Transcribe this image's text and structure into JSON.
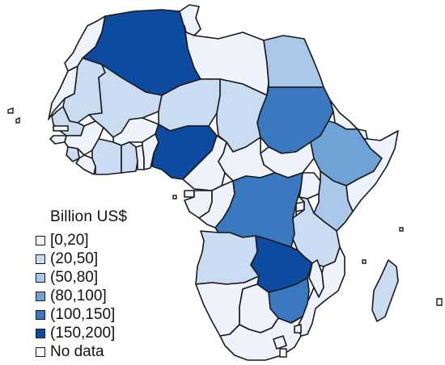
{
  "legend": {
    "title": "Billion US$",
    "items": [
      {
        "label": "[0,20]",
        "color": "#eef3fb"
      },
      {
        "label": "(20,50]",
        "color": "#cadcf1"
      },
      {
        "label": "(50,80]",
        "color": "#a9c8ea"
      },
      {
        "label": "(80,100]",
        "color": "#6fa3d8"
      },
      {
        "label": "(100,150]",
        "color": "#3a78c0"
      },
      {
        "label": "(150,200]",
        "color": "#0d4ba1"
      },
      {
        "label": "No data",
        "color": "#ffffff"
      }
    ]
  },
  "regions": [
    {
      "name": "morocco",
      "class": 0
    },
    {
      "name": "western-sahara",
      "class": 0
    },
    {
      "name": "algeria",
      "class": 5
    },
    {
      "name": "tunisia",
      "class": 0
    },
    {
      "name": "libya",
      "class": 0
    },
    {
      "name": "egypt",
      "class": 2
    },
    {
      "name": "mauritania",
      "class": 1
    },
    {
      "name": "mali",
      "class": 1
    },
    {
      "name": "niger",
      "class": 1
    },
    {
      "name": "chad",
      "class": 1
    },
    {
      "name": "sudan",
      "class": 4
    },
    {
      "name": "south-sudan",
      "class": 0
    },
    {
      "name": "eritrea",
      "class": 0
    },
    {
      "name": "ethiopia",
      "class": 3
    },
    {
      "name": "djibouti",
      "class": 0
    },
    {
      "name": "somalia",
      "class": 0
    },
    {
      "name": "senegal",
      "class": 1
    },
    {
      "name": "gambia",
      "class": 0
    },
    {
      "name": "guinea-bissau",
      "class": 0
    },
    {
      "name": "guinea",
      "class": 0
    },
    {
      "name": "sierra-leone",
      "class": 1
    },
    {
      "name": "liberia",
      "class": 0
    },
    {
      "name": "cote-divoire",
      "class": 1
    },
    {
      "name": "burkina-faso",
      "class": 0
    },
    {
      "name": "ghana",
      "class": 1
    },
    {
      "name": "togo",
      "class": 0
    },
    {
      "name": "benin",
      "class": 0
    },
    {
      "name": "nigeria",
      "class": 5
    },
    {
      "name": "cameroon",
      "class": 0
    },
    {
      "name": "central-african-republic",
      "class": 0
    },
    {
      "name": "equatorial-guinea",
      "class": 0
    },
    {
      "name": "gabon",
      "class": 0
    },
    {
      "name": "congo",
      "class": 0
    },
    {
      "name": "dr-congo",
      "class": 4
    },
    {
      "name": "uganda",
      "class": 0
    },
    {
      "name": "kenya",
      "class": 2
    },
    {
      "name": "rwanda",
      "class": 0
    },
    {
      "name": "burundi",
      "class": 0
    },
    {
      "name": "tanzania",
      "class": 1
    },
    {
      "name": "angola",
      "class": 1
    },
    {
      "name": "zambia",
      "class": 5
    },
    {
      "name": "malawi",
      "class": 0
    },
    {
      "name": "mozambique",
      "class": 0
    },
    {
      "name": "zimbabwe",
      "class": 4
    },
    {
      "name": "namibia",
      "class": 0
    },
    {
      "name": "botswana",
      "class": 0
    },
    {
      "name": "south-africa",
      "class": 0
    },
    {
      "name": "lesotho",
      "class": 0
    },
    {
      "name": "eswatini",
      "class": 0
    },
    {
      "name": "madagascar",
      "class": 1
    }
  ]
}
